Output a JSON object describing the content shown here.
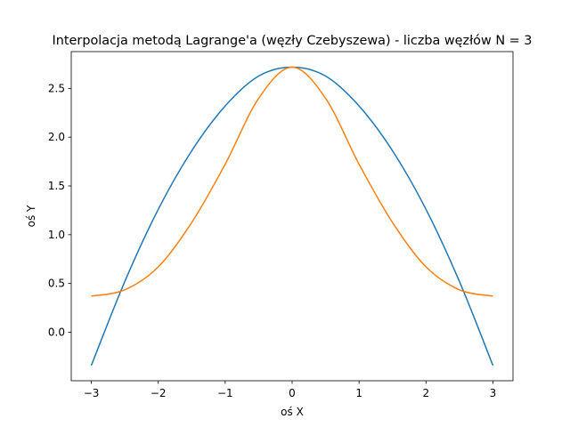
{
  "chart_data": {
    "type": "line",
    "title": "Interpolacja metodą Lagrange'a (węzły Czebyszewa) - liczba węzłów N = 3",
    "xlabel": "oś X",
    "ylabel": "oś Y",
    "xlim": [
      -3.3,
      3.3
    ],
    "ylim": [
      -0.497,
      2.877
    ],
    "xticks": [
      -3,
      -2,
      -1,
      0,
      1,
      2,
      3
    ],
    "xtick_labels": [
      "−3",
      "−2",
      "−1",
      "0",
      "1",
      "2",
      "3"
    ],
    "yticks": [
      0.0,
      0.5,
      1.0,
      1.5,
      2.0,
      2.5
    ],
    "ytick_labels": [
      "0.0",
      "0.5",
      "1.0",
      "1.5",
      "2.0",
      "2.5"
    ],
    "grid": false,
    "legend": null,
    "series": [
      {
        "color": "#1f77b4",
        "x": [
          -3.0,
          -2.5,
          -2.0,
          -1.5,
          -1.0,
          -0.5,
          0.0,
          0.5,
          1.0,
          1.5,
          2.0,
          2.5,
          3.0
        ],
        "y": [
          -0.34,
          0.52,
          1.26,
          1.86,
          2.32,
          2.626,
          2.718,
          2.626,
          2.32,
          1.86,
          1.26,
          0.52,
          -0.34
        ]
      },
      {
        "color": "#ff7f0e",
        "x": [
          -3.0,
          -2.5,
          -2.0,
          -1.5,
          -1.0,
          -0.5,
          0.0,
          0.5,
          1.0,
          1.5,
          2.0,
          2.5,
          3.0
        ],
        "y": [
          0.37,
          0.435,
          0.67,
          1.125,
          1.723,
          2.398,
          2.718,
          2.398,
          1.723,
          1.125,
          0.67,
          0.435,
          0.37
        ]
      }
    ]
  }
}
